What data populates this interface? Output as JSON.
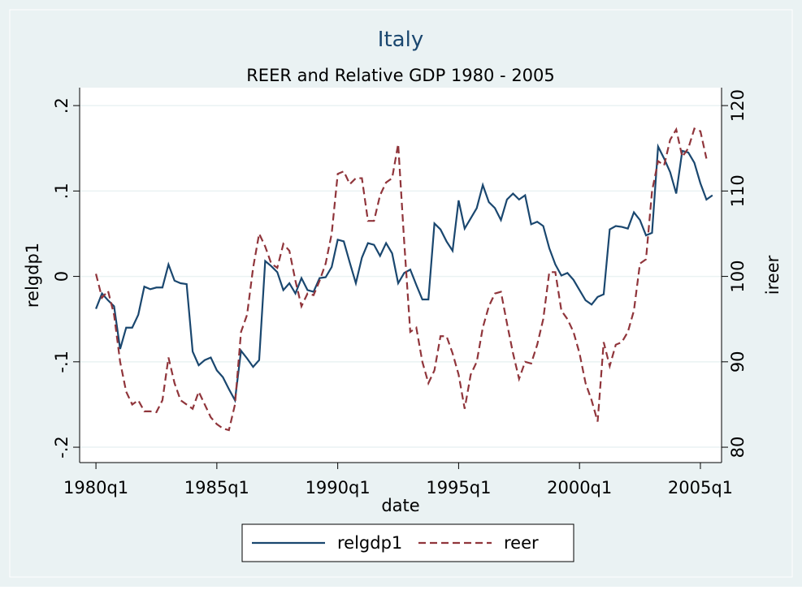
{
  "chart_data": {
    "type": "line",
    "title": "Italy",
    "subtitle": "REER and Relative GDP 1980 - 2005",
    "xlabel": "date",
    "ylabel": "relgdp1",
    "y2label": "ireer",
    "x": [
      80,
      81,
      82,
      83,
      84,
      85,
      86,
      87,
      88,
      89,
      90,
      91,
      92,
      93,
      94,
      95,
      96,
      97,
      98,
      99,
      100,
      101,
      102,
      103,
      104,
      105,
      106,
      107,
      108,
      109,
      110,
      111,
      112,
      113,
      114,
      115,
      116,
      117,
      118,
      119,
      120,
      121,
      122,
      123,
      124,
      125,
      126,
      127,
      128,
      129,
      130,
      131,
      132,
      133,
      134,
      135,
      136,
      137,
      138,
      139,
      140,
      141,
      142,
      143,
      144,
      145,
      146,
      147,
      148,
      149,
      150,
      151,
      152,
      153,
      154,
      155,
      156,
      157,
      158,
      159,
      160,
      161,
      162,
      163,
      164,
      165,
      166,
      167,
      168,
      169,
      170,
      171,
      172,
      173,
      174,
      175,
      176,
      177,
      178,
      179,
      180,
      181,
      182
    ],
    "xlim": [
      77.3,
      183.5
    ],
    "xticks": [
      {
        "value": 80,
        "label": "1980q1"
      },
      {
        "value": 100,
        "label": "1985q1"
      },
      {
        "value": 120,
        "label": "1990q1"
      },
      {
        "value": 140,
        "label": "1995q1"
      },
      {
        "value": 160,
        "label": "2000q1"
      },
      {
        "value": 180,
        "label": "2005q1"
      }
    ],
    "ylim": [
      -0.218,
      0.221
    ],
    "yticks": [
      {
        "value": -0.2,
        "label": "-.2"
      },
      {
        "value": -0.1,
        "label": "-.1"
      },
      0,
      {
        "value": 0.1,
        "label": ".1"
      },
      {
        "value": 0.2,
        "label": ".2"
      }
    ],
    "y2lim": [
      78.2,
      122.1
    ],
    "y2ticks": [
      80,
      90,
      100,
      110,
      120
    ],
    "grid": true,
    "legend": "bottom",
    "series": [
      {
        "name": "relgdp1",
        "color": "#1a476f",
        "dash": "solid",
        "values": [
          -0.038,
          -0.02,
          -0.028,
          -0.035,
          -0.085,
          -0.06,
          -0.06,
          -0.045,
          -0.012,
          -0.015,
          -0.013,
          -0.013,
          0.014,
          -0.005,
          -0.008,
          -0.009,
          -0.088,
          -0.104,
          -0.098,
          -0.095,
          -0.11,
          -0.118,
          -0.132,
          -0.145,
          -0.087,
          -0.096,
          -0.106,
          -0.098,
          0.018,
          0.012,
          0.005,
          -0.016,
          -0.008,
          -0.02,
          -0.002,
          -0.016,
          -0.018,
          -0.002,
          -0.001,
          0.011,
          0.043,
          0.041,
          0.016,
          -0.008,
          0.022,
          0.039,
          0.037,
          0.024,
          0.039,
          0.027,
          -0.008,
          0.004,
          0.008,
          -0.01,
          -0.027,
          -0.027,
          0.062,
          0.055,
          0.041,
          0.03,
          0.089,
          0.056,
          0.068,
          0.08,
          0.107,
          0.087,
          0.08,
          0.066,
          0.09,
          0.097,
          0.09,
          0.095,
          0.061,
          0.064,
          0.059,
          0.033,
          0.014,
          0.001,
          0.004,
          -0.004,
          -0.016,
          -0.028,
          -0.033,
          -0.024,
          -0.021,
          0.055,
          0.059,
          0.058,
          0.056,
          0.075,
          0.066,
          0.048,
          0.051,
          0.152,
          0.138,
          0.122,
          0.097,
          0.147,
          0.145,
          0.133,
          0.109,
          0.09,
          0.095
        ]
      },
      {
        "name": "reer",
        "color": "#90353b",
        "dash": "dashed",
        "axis": "y2",
        "values": [
          100.3,
          97.5,
          98.3,
          95.5,
          90,
          86.5,
          85,
          85.5,
          84.2,
          84.2,
          84.1,
          85.5,
          90.5,
          87.5,
          85.5,
          85,
          84.5,
          86.5,
          85,
          83.5,
          82.7,
          82.2,
          82,
          85,
          93.5,
          95.5,
          101,
          105,
          103.5,
          101.5,
          101,
          103.8,
          103,
          99.5,
          96.5,
          98,
          97.8,
          99.5,
          101.5,
          105,
          112,
          112.3,
          110.8,
          111.5,
          111.5,
          106.5,
          106.5,
          109.5,
          111,
          111.5,
          115.5,
          104,
          93.5,
          94,
          90,
          87.5,
          89,
          93,
          93,
          91,
          88.5,
          84.5,
          88.5,
          90,
          94,
          96.5,
          98,
          98.2,
          94.5,
          91,
          88,
          90,
          89.8,
          92,
          95,
          100.5,
          100.5,
          96,
          95,
          93.5,
          91,
          87.5,
          85.5,
          83,
          92.3,
          89.5,
          92,
          92.3,
          93.5,
          96,
          101.5,
          102,
          110,
          113.5,
          113,
          116,
          117.2,
          114,
          115,
          117.3,
          117,
          113.8,
          null
        ]
      }
    ]
  }
}
